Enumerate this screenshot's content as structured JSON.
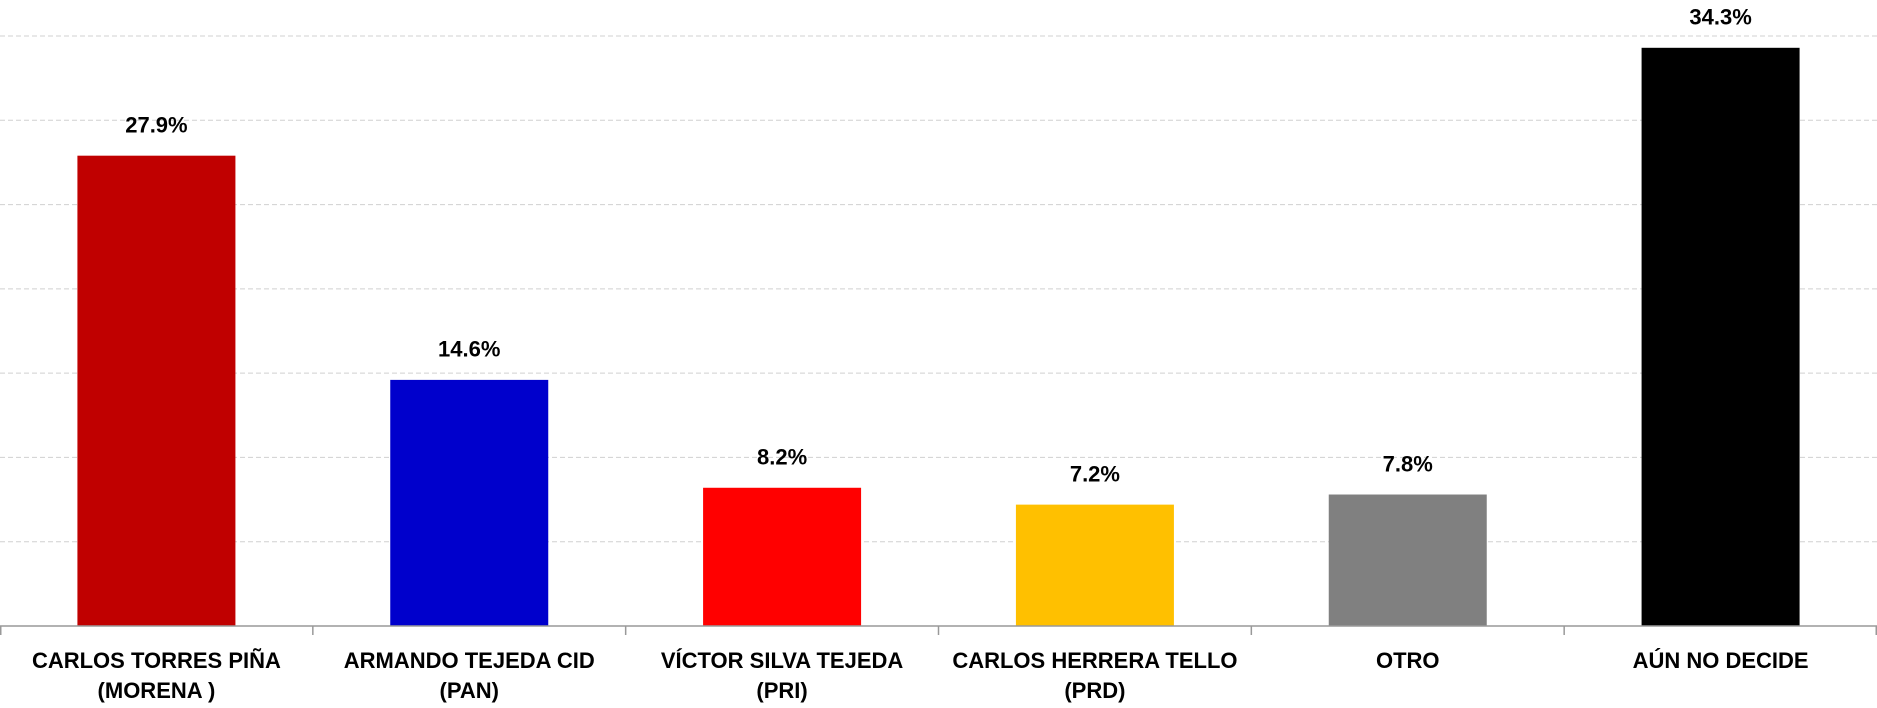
{
  "chart_data": {
    "type": "bar",
    "categories": [
      [
        "CARLOS TORRES PIÑA",
        "(MORENA )"
      ],
      [
        "ARMANDO TEJEDA CID",
        "(PAN)"
      ],
      [
        "VÍCTOR SILVA TEJEDA",
        "(PRI)"
      ],
      [
        "CARLOS HERRERA TELLO",
        "(PRD)"
      ],
      [
        "OTRO"
      ],
      [
        "AÚN NO DECIDE"
      ]
    ],
    "values": [
      27.9,
      14.6,
      8.2,
      7.2,
      7.8,
      34.3
    ],
    "value_labels": [
      "27.9%",
      "14.6%",
      "8.2%",
      "7.2%",
      "7.8%",
      "34.3%"
    ],
    "colors": [
      "#c00000",
      "#0000cc",
      "#ff0000",
      "#ffc000",
      "#808080",
      "#000000"
    ],
    "ylim": [
      0,
      35
    ],
    "yticks": [
      0,
      5,
      10,
      15,
      20,
      25,
      30,
      35
    ],
    "grid": true
  }
}
